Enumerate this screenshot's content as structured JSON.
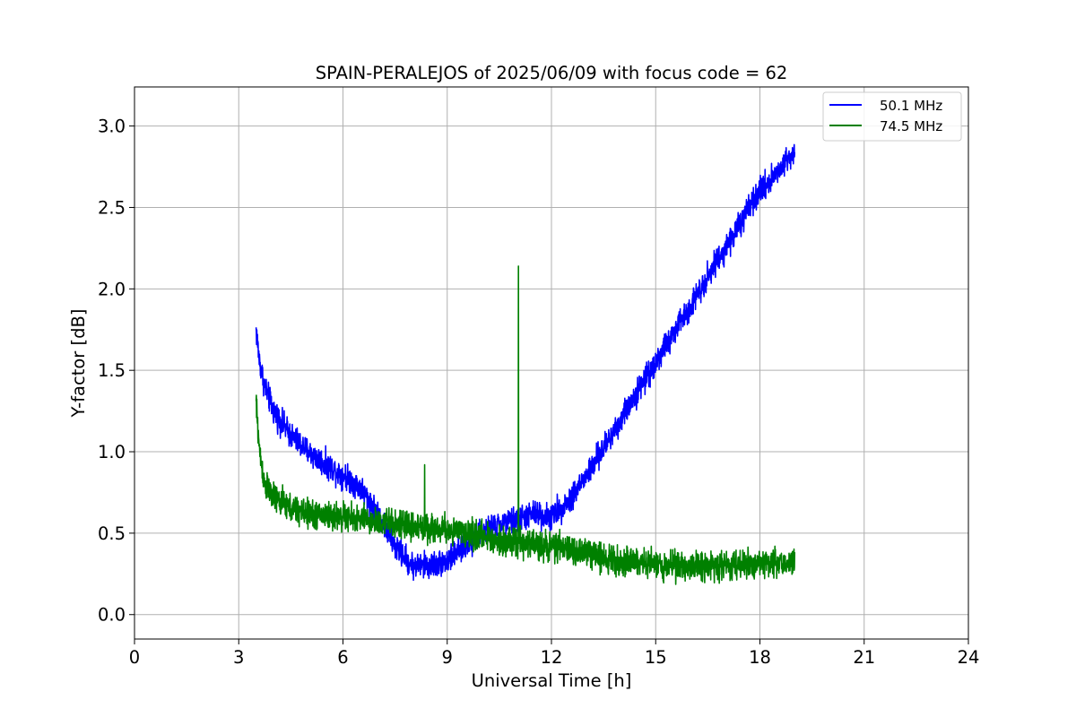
{
  "chart_data": {
    "type": "line",
    "title": "SPAIN-PERALEJOS of 2025/06/09 with focus code = 62",
    "xlabel": "Universal Time [h]",
    "ylabel": "Y-factor [dB]",
    "xlim": [
      0,
      24
    ],
    "ylim": [
      -0.15,
      3.24
    ],
    "xticks": [
      0,
      3,
      6,
      9,
      12,
      15,
      18,
      21,
      24
    ],
    "xtick_labels": [
      "0",
      "3",
      "6",
      "9",
      "12",
      "15",
      "18",
      "21",
      "24"
    ],
    "yticks": [
      0.0,
      0.5,
      1.0,
      1.5,
      2.0,
      2.5,
      3.0
    ],
    "ytick_labels": [
      "0.0",
      "0.5",
      "1.0",
      "1.5",
      "2.0",
      "2.5",
      "3.0"
    ],
    "grid": true,
    "legend_position": "top-right",
    "series": [
      {
        "name": "50.1 MHz",
        "color": "#0000ff",
        "noise_amplitude": 0.12,
        "x": [
          3.5,
          3.6,
          3.75,
          4.0,
          4.5,
          5.0,
          5.5,
          6.0,
          6.5,
          7.0,
          7.5,
          8.0,
          8.5,
          9.0,
          9.5,
          10.0,
          10.5,
          11.0,
          11.5,
          12.0,
          12.5,
          13.0,
          13.5,
          14.0,
          14.5,
          15.0,
          15.5,
          16.0,
          16.5,
          17.0,
          17.5,
          18.0,
          18.5,
          19.0
        ],
        "y": [
          1.75,
          1.55,
          1.4,
          1.25,
          1.1,
          1.0,
          0.92,
          0.86,
          0.78,
          0.62,
          0.42,
          0.3,
          0.3,
          0.33,
          0.42,
          0.5,
          0.55,
          0.58,
          0.62,
          0.6,
          0.7,
          0.85,
          1.02,
          1.2,
          1.38,
          1.55,
          1.72,
          1.9,
          2.08,
          2.25,
          2.42,
          2.6,
          2.72,
          2.85
        ]
      },
      {
        "name": "74.5 MHz",
        "color": "#008000",
        "noise_amplitude": 0.13,
        "x": [
          3.5,
          3.6,
          3.75,
          4.0,
          4.5,
          5.0,
          6.0,
          7.0,
          8.0,
          9.0,
          10.0,
          11.0,
          12.0,
          13.0,
          14.0,
          15.0,
          16.0,
          17.0,
          18.0,
          19.0
        ],
        "y": [
          1.3,
          1.0,
          0.8,
          0.72,
          0.65,
          0.62,
          0.6,
          0.57,
          0.54,
          0.52,
          0.48,
          0.44,
          0.42,
          0.38,
          0.33,
          0.31,
          0.3,
          0.3,
          0.32,
          0.32
        ],
        "spikes": [
          {
            "x": 11.05,
            "y": 2.14
          },
          {
            "x": 8.35,
            "y": 0.92
          }
        ]
      }
    ]
  }
}
